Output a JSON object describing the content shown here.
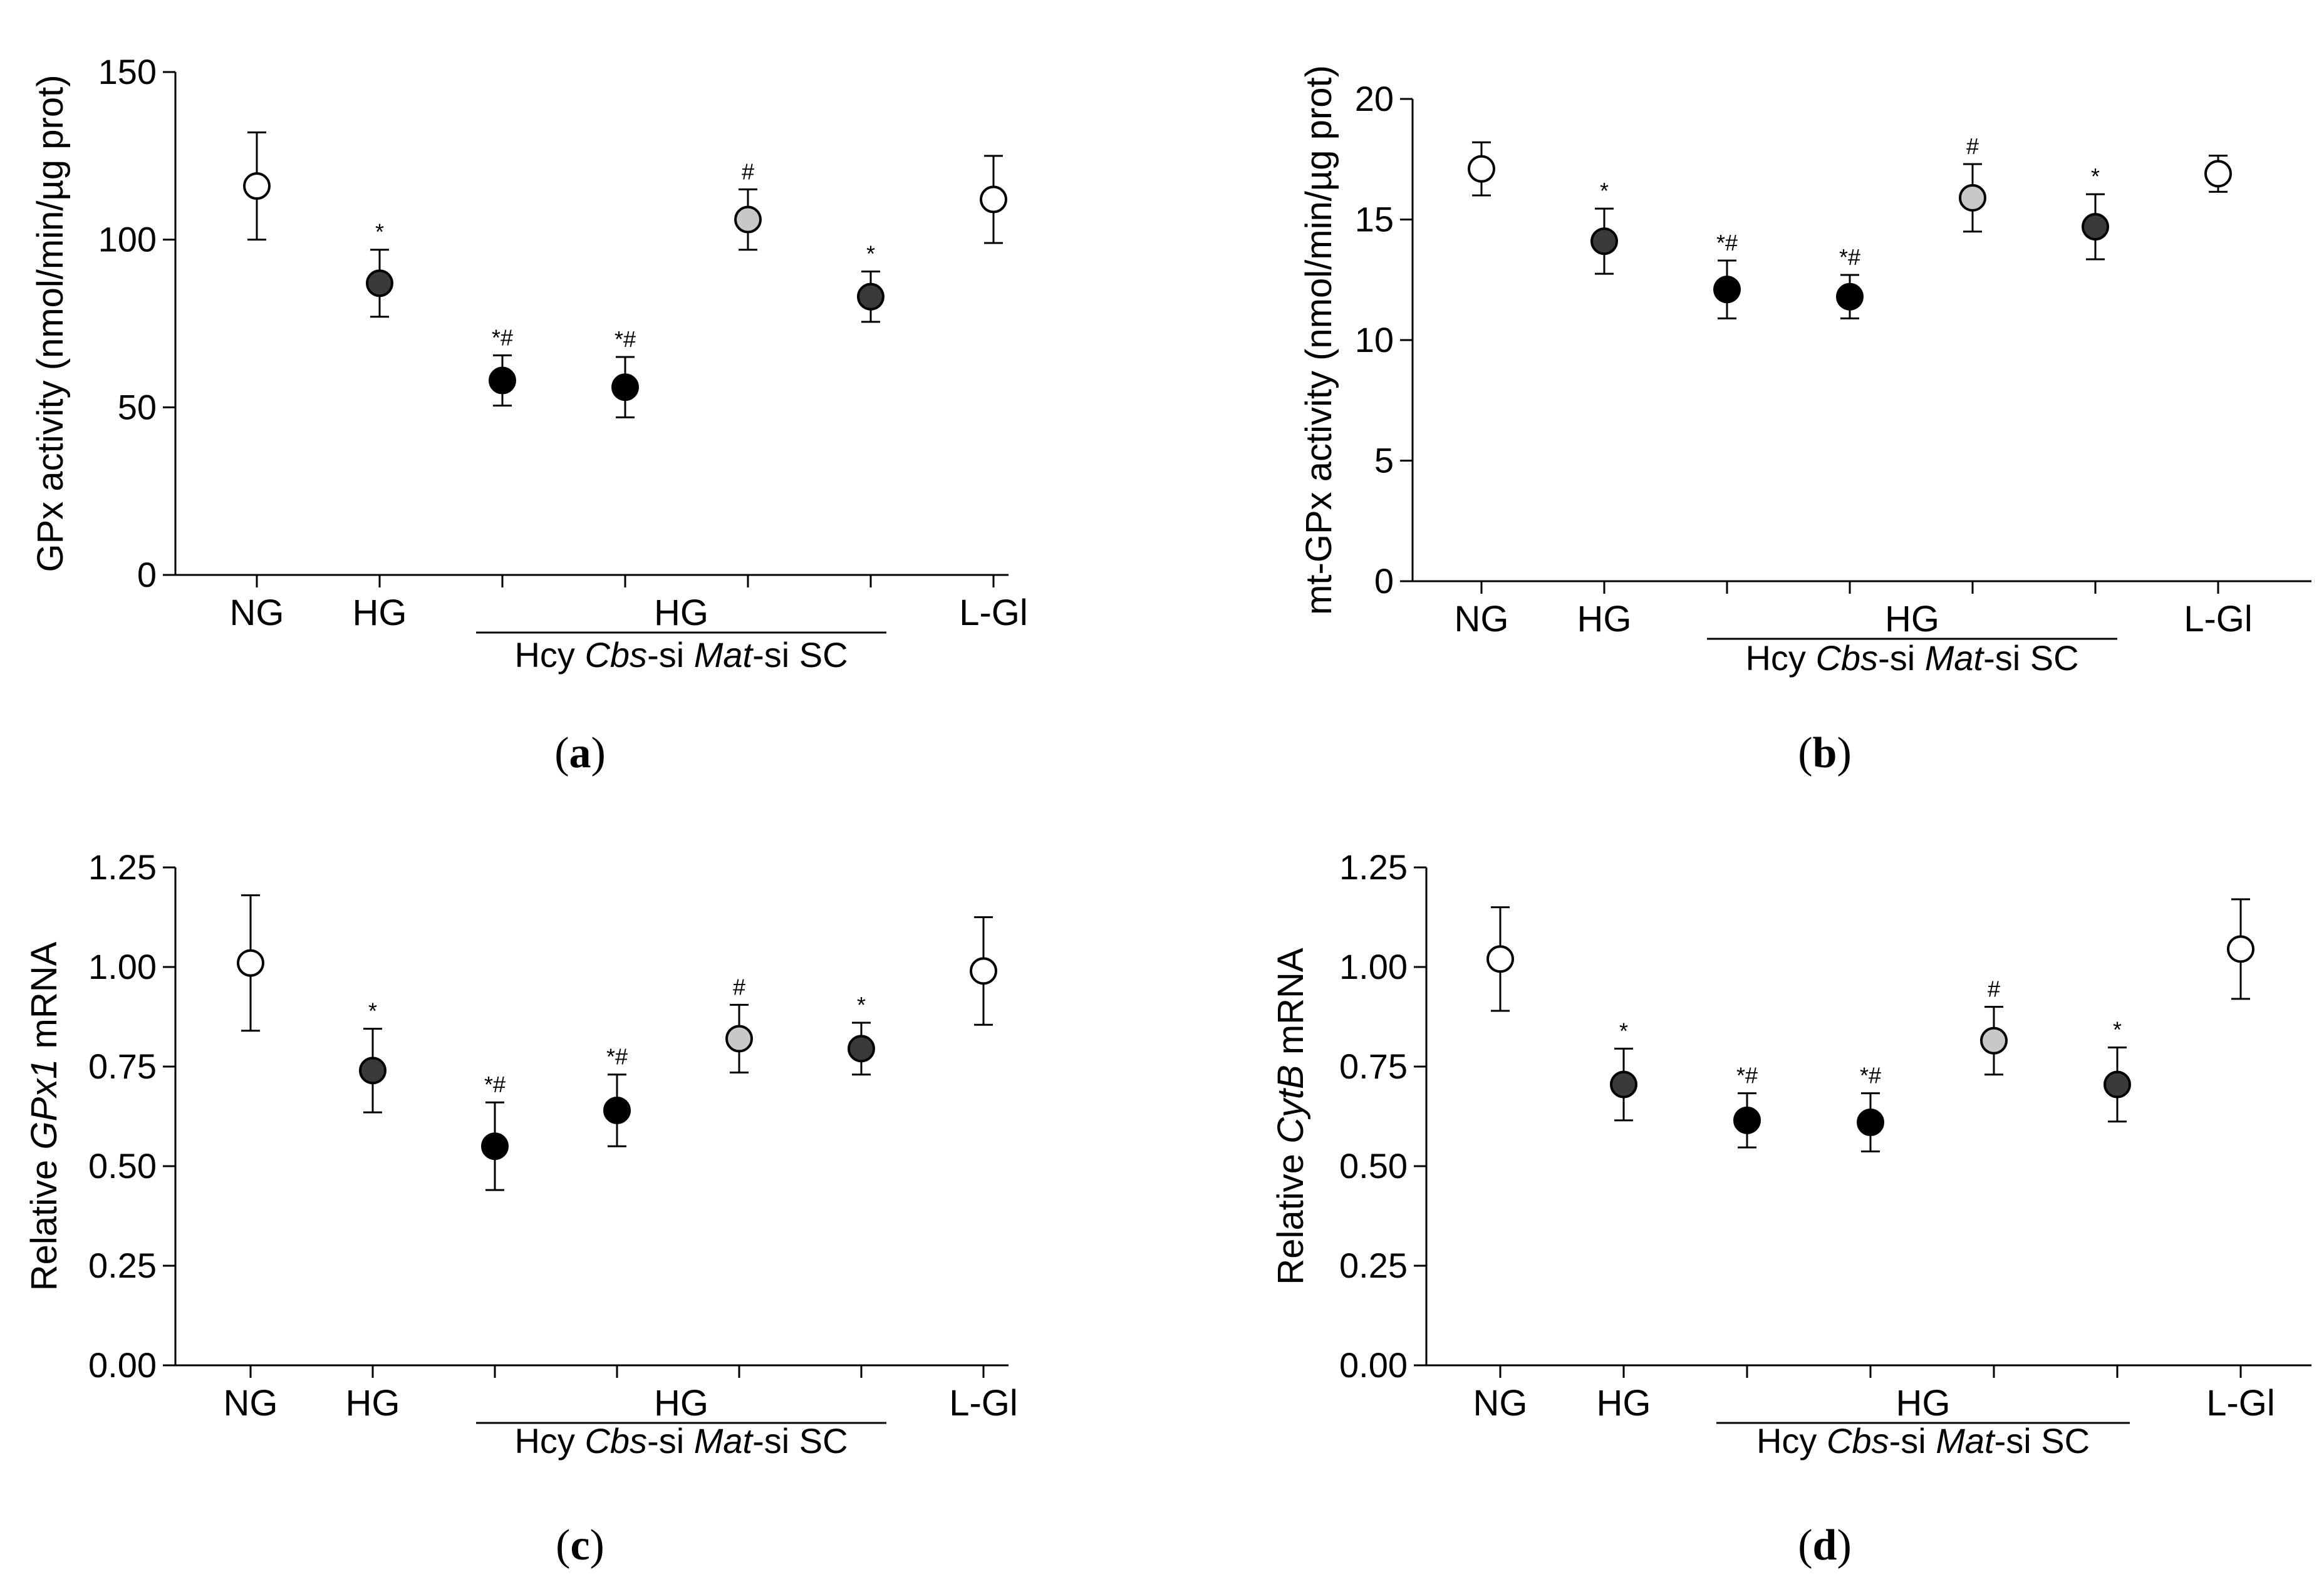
{
  "chart_data": [
    {
      "panel": "a",
      "type": "scatter",
      "ylabel": "GPx activity (nmol/min/µg prot)",
      "ylim": [
        0,
        150
      ],
      "yticks": [
        "0",
        "50",
        "100",
        "150"
      ],
      "x_labels": [
        "NG",
        "HG",
        "HG",
        "L-Gl"
      ],
      "sub_labels": [
        "Hcy",
        "Cbs",
        "-si",
        "Mat",
        "-si",
        "SC"
      ],
      "points": [
        {
          "group": "NG",
          "value": 116,
          "err": 16,
          "fill": "#ffffff",
          "sig": ""
        },
        {
          "group": "HG",
          "value": 87,
          "err": 10,
          "fill": "#3a3a3a",
          "sig": "*"
        },
        {
          "group": "Hcy",
          "value": 58,
          "err": 7.5,
          "fill": "#000000",
          "sig": "*#"
        },
        {
          "group": "Cbs-si",
          "value": 56,
          "err": 9,
          "fill": "#000000",
          "sig": "*#"
        },
        {
          "group": "Mat-si",
          "value": 106,
          "err": 9,
          "fill": "#c8c8c8",
          "sig": "#"
        },
        {
          "group": "SC",
          "value": 83,
          "err": 7.5,
          "fill": "#3a3a3a",
          "sig": "*"
        },
        {
          "group": "L-Gl",
          "value": 112,
          "err": 13,
          "fill": "#ffffff",
          "sig": ""
        }
      ]
    },
    {
      "panel": "b",
      "type": "scatter",
      "ylabel": "mt-GPx activity (nmol/min/µg prot)",
      "ylim": [
        0,
        20
      ],
      "yticks": [
        "0",
        "5",
        "10",
        "15",
        "20"
      ],
      "x_labels": [
        "NG",
        "HG",
        "HG",
        "L-Gl"
      ],
      "sub_labels": [
        "Hcy",
        "Cbs",
        "-si",
        "Mat",
        "-si",
        "SC"
      ],
      "points": [
        {
          "group": "NG",
          "value": 17.1,
          "err": 1.1,
          "fill": "#ffffff",
          "sig": ""
        },
        {
          "group": "HG",
          "value": 14.1,
          "err": 1.35,
          "fill": "#3a3a3a",
          "sig": "*"
        },
        {
          "group": "Hcy",
          "value": 12.1,
          "err": 1.2,
          "fill": "#000000",
          "sig": "*#"
        },
        {
          "group": "Cbs-si",
          "value": 11.8,
          "err": 0.9,
          "fill": "#000000",
          "sig": "*#"
        },
        {
          "group": "Mat-si",
          "value": 15.9,
          "err": 1.4,
          "fill": "#c8c8c8",
          "sig": "#"
        },
        {
          "group": "SC",
          "value": 14.7,
          "err": 1.35,
          "fill": "#3a3a3a",
          "sig": "*"
        },
        {
          "group": "L-Gl",
          "value": 16.9,
          "err": 0.75,
          "fill": "#ffffff",
          "sig": ""
        }
      ]
    },
    {
      "panel": "c",
      "type": "scatter",
      "ylabel_prefix": "Relative ",
      "ylabel_gene": "GPx1",
      "ylabel_suffix": " mRNA",
      "ylim": [
        0,
        1.25
      ],
      "yticks": [
        "0.00",
        "0.25",
        "0.50",
        "0.75",
        "1.00",
        "1.25"
      ],
      "x_labels": [
        "NG",
        "HG",
        "HG",
        "L-Gl"
      ],
      "sub_labels": [
        "Hcy",
        "Cbs",
        "-si",
        "Mat",
        "-si",
        "SC"
      ],
      "points": [
        {
          "group": "NG",
          "value": 1.01,
          "err": 0.17,
          "fill": "#ffffff",
          "sig": ""
        },
        {
          "group": "HG",
          "value": 0.74,
          "err": 0.105,
          "fill": "#3a3a3a",
          "sig": "*"
        },
        {
          "group": "Hcy",
          "value": 0.55,
          "err": 0.11,
          "fill": "#000000",
          "sig": "*#"
        },
        {
          "group": "Cbs-si",
          "value": 0.64,
          "err": 0.09,
          "fill": "#000000",
          "sig": "*#"
        },
        {
          "group": "Mat-si",
          "value": 0.82,
          "err": 0.085,
          "fill": "#c8c8c8",
          "sig": "#"
        },
        {
          "group": "SC",
          "value": 0.795,
          "err": 0.065,
          "fill": "#3a3a3a",
          "sig": "*"
        },
        {
          "group": "L-Gl",
          "value": 0.99,
          "err": 0.135,
          "fill": "#ffffff",
          "sig": ""
        }
      ]
    },
    {
      "panel": "d",
      "type": "scatter",
      "ylabel_prefix": "Relative ",
      "ylabel_gene": "CytB",
      "ylabel_suffix": " mRNA",
      "ylim": [
        0,
        1.25
      ],
      "yticks": [
        "0.00",
        "0.25",
        "0.50",
        "0.75",
        "1.00",
        "1.25"
      ],
      "x_labels": [
        "NG",
        "HG",
        "HG",
        "L-Gl"
      ],
      "sub_labels": [
        "Hcy",
        "Cbs",
        "-si",
        "Mat",
        "-si",
        "SC"
      ],
      "points": [
        {
          "group": "NG",
          "value": 1.02,
          "err": 0.13,
          "fill": "#ffffff",
          "sig": ""
        },
        {
          "group": "HG",
          "value": 0.705,
          "err": 0.09,
          "fill": "#3a3a3a",
          "sig": "*"
        },
        {
          "group": "Hcy",
          "value": 0.615,
          "err": 0.068,
          "fill": "#000000",
          "sig": "*#"
        },
        {
          "group": "Cbs-si",
          "value": 0.61,
          "err": 0.073,
          "fill": "#000000",
          "sig": "*#"
        },
        {
          "group": "Mat-si",
          "value": 0.815,
          "err": 0.085,
          "fill": "#c8c8c8",
          "sig": "#"
        },
        {
          "group": "SC",
          "value": 0.705,
          "err": 0.093,
          "fill": "#3a3a3a",
          "sig": "*"
        },
        {
          "group": "L-Gl",
          "value": 1.045,
          "err": 0.125,
          "fill": "#ffffff",
          "sig": ""
        }
      ]
    }
  ],
  "captions": {
    "a": {
      "open": "(",
      "letter": "a",
      "close": ")"
    },
    "b": {
      "open": "(",
      "letter": "b",
      "close": ")"
    },
    "c": {
      "open": "(",
      "letter": "c",
      "close": ")"
    },
    "d": {
      "open": "(",
      "letter": "d",
      "close": ")"
    }
  }
}
